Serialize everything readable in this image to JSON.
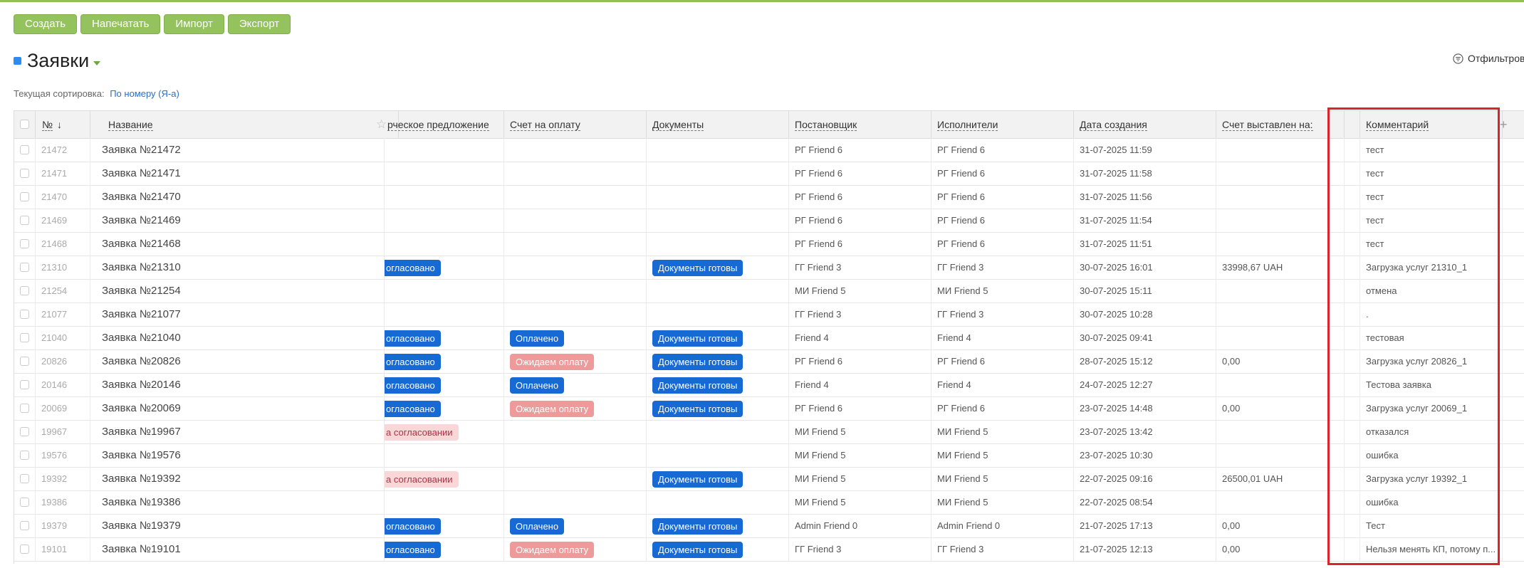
{
  "toolbar": {
    "create": "Создать",
    "print": "Напечатать",
    "import": "Импорт",
    "export": "Экспорт"
  },
  "title": "Заявки",
  "filter_label": "Отфильтров",
  "sort": {
    "label": "Текущая сортировка:",
    "value": "По номеру (Я-а)"
  },
  "columns": {
    "num": "№",
    "name": "Название",
    "offer": "рческое предложение",
    "invoice": "Счет на оплату",
    "docs": "Документы",
    "author": "Постановщик",
    "executors": "Исполнители",
    "created": "Дата создания",
    "billed": "Счет выставлен на:",
    "comment": "Комментарий"
  },
  "colors": {
    "accent": "#94c35e",
    "badge_blue": "#1769d4",
    "badge_pink": "#ee9a9a",
    "highlight": "#d9232d"
  },
  "rows": [
    {
      "num": "21472",
      "name": "Заявка №21472",
      "offer": "",
      "invoice": "",
      "docs": "",
      "author": "РГ Friend 6",
      "executors": "РГ Friend 6",
      "created": "31-07-2025 11:59",
      "billed": "",
      "comment": "тест"
    },
    {
      "num": "21471",
      "name": "Заявка №21471",
      "offer": "",
      "invoice": "",
      "docs": "",
      "author": "РГ Friend 6",
      "executors": "РГ Friend 6",
      "created": "31-07-2025 11:58",
      "billed": "",
      "comment": "тест"
    },
    {
      "num": "21470",
      "name": "Заявка №21470",
      "offer": "",
      "invoice": "",
      "docs": "",
      "author": "РГ Friend 6",
      "executors": "РГ Friend 6",
      "created": "31-07-2025 11:56",
      "billed": "",
      "comment": "тест"
    },
    {
      "num": "21469",
      "name": "Заявка №21469",
      "offer": "",
      "invoice": "",
      "docs": "",
      "author": "РГ Friend 6",
      "executors": "РГ Friend 6",
      "created": "31-07-2025 11:54",
      "billed": "",
      "comment": "тест"
    },
    {
      "num": "21468",
      "name": "Заявка №21468",
      "offer": "",
      "invoice": "",
      "docs": "",
      "author": "РГ Friend 6",
      "executors": "РГ Friend 6",
      "created": "31-07-2025 11:51",
      "billed": "",
      "comment": "тест"
    },
    {
      "num": "21310",
      "name": "Заявка №21310",
      "offer": "огласовано",
      "invoice": "",
      "docs": "Документы готовы",
      "author": "ГГ Friend 3",
      "executors": "ГГ Friend 3",
      "created": "30-07-2025 16:01",
      "billed": "33998,67 UAH",
      "comment": "Загрузка услуг 21310_1"
    },
    {
      "num": "21254",
      "name": "Заявка №21254",
      "offer": "",
      "invoice": "",
      "docs": "",
      "author": "МИ Friend 5",
      "executors": "МИ Friend 5",
      "created": "30-07-2025 15:11",
      "billed": "",
      "comment": "отмена"
    },
    {
      "num": "21077",
      "name": "Заявка №21077",
      "offer": "",
      "invoice": "",
      "docs": "",
      "author": "ГГ Friend 3",
      "executors": "ГГ Friend 3",
      "created": "30-07-2025 10:28",
      "billed": "",
      "comment": "."
    },
    {
      "num": "21040",
      "name": "Заявка №21040",
      "offer": "огласовано",
      "invoice": "Оплачено",
      "docs": "Документы готовы",
      "author": "Friend 4",
      "executors": "Friend 4",
      "created": "30-07-2025 09:41",
      "billed": "",
      "comment": "тестовая"
    },
    {
      "num": "20826",
      "name": "Заявка №20826",
      "offer": "огласовано",
      "invoice": "Ожидаем оплату",
      "docs": "Документы готовы",
      "author": "РГ Friend 6",
      "executors": "РГ Friend 6",
      "created": "28-07-2025 15:12",
      "billed": "0,00",
      "comment": "Загрузка услуг 20826_1"
    },
    {
      "num": "20146",
      "name": "Заявка №20146",
      "offer": "огласовано",
      "invoice": "Оплачено",
      "docs": "Документы готовы",
      "author": "Friend 4",
      "executors": "Friend 4",
      "created": "24-07-2025 12:27",
      "billed": "",
      "comment": "Тестова заявка"
    },
    {
      "num": "20069",
      "name": "Заявка №20069",
      "offer": "огласовано",
      "invoice": "Ожидаем оплату",
      "docs": "Документы готовы",
      "author": "РГ Friend 6",
      "executors": "РГ Friend 6",
      "created": "23-07-2025 14:48",
      "billed": "0,00",
      "comment": "Загрузка услуг 20069_1"
    },
    {
      "num": "19967",
      "name": "Заявка №19967",
      "offer": "а согласовании",
      "invoice": "",
      "docs": "",
      "author": "МИ Friend 5",
      "executors": "МИ Friend 5",
      "created": "23-07-2025 13:42",
      "billed": "",
      "comment": "отказался"
    },
    {
      "num": "19576",
      "name": "Заявка №19576",
      "offer": "",
      "invoice": "",
      "docs": "",
      "author": "МИ Friend 5",
      "executors": "МИ Friend 5",
      "created": "23-07-2025 10:30",
      "billed": "",
      "comment": "ошибка"
    },
    {
      "num": "19392",
      "name": "Заявка №19392",
      "offer": "а согласовании",
      "invoice": "",
      "docs": "Документы готовы",
      "author": "МИ Friend 5",
      "executors": "МИ Friend 5",
      "created": "22-07-2025 09:16",
      "billed": "26500,01 UAH",
      "comment": "Загрузка услуг 19392_1"
    },
    {
      "num": "19386",
      "name": "Заявка №19386",
      "offer": "",
      "invoice": "",
      "docs": "",
      "author": "МИ Friend 5",
      "executors": "МИ Friend 5",
      "created": "22-07-2025 08:54",
      "billed": "",
      "comment": "ошибка"
    },
    {
      "num": "19379",
      "name": "Заявка №19379",
      "offer": "огласовано",
      "invoice": "Оплачено",
      "docs": "Документы готовы",
      "author": "Admin Friend 0",
      "executors": "Admin Friend 0",
      "created": "21-07-2025 17:13",
      "billed": "0,00",
      "comment": "Тест"
    },
    {
      "num": "19101",
      "name": "Заявка №19101",
      "offer": "огласовано",
      "invoice": "Ожидаем оплату",
      "docs": "Документы готовы",
      "author": "ГГ Friend 3",
      "executors": "ГГ Friend 3",
      "created": "21-07-2025 12:13",
      "billed": "0,00",
      "comment": "Нельзя менять КП, потому п..."
    }
  ]
}
